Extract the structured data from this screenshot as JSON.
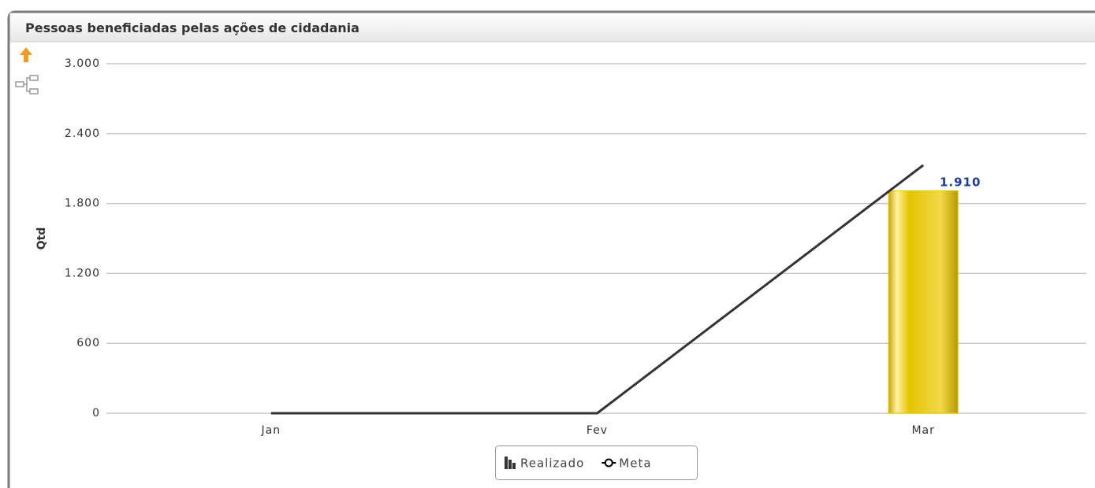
{
  "chart_data": {
    "type": "bar",
    "title": "Pessoas beneficiadas pelas ações de cidadania",
    "y_label": "Qtd",
    "categories": [
      "Jan",
      "Fev",
      "Mar"
    ],
    "series": [
      {
        "name": "Realizado",
        "type": "bar",
        "color": "#e6c300",
        "values": [
          null,
          null,
          1910
        ],
        "value_labels": [
          null,
          null,
          "1.910"
        ]
      },
      {
        "name": "Meta",
        "type": "line",
        "color": "#333333",
        "values": [
          0,
          0,
          2130
        ]
      }
    ],
    "ylim": [
      0,
      3000
    ],
    "yticks": [
      0,
      600,
      {
        "value": 1200,
        "label": "1.200"
      },
      {
        "value": 1800,
        "label": "1.800"
      },
      {
        "value": 2400,
        "label": "2.400"
      },
      {
        "value": 3000,
        "label": "3.000"
      }
    ],
    "grid": true,
    "legend": "bottom"
  }
}
